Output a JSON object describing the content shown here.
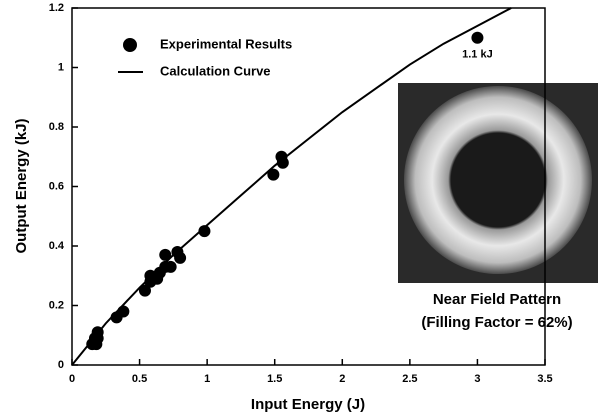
{
  "chart_data": {
    "type": "scatter",
    "xlabel": "Input Energy (J)",
    "ylabel": "Output Energy (kJ)",
    "xlim": [
      0,
      3.5
    ],
    "ylim": [
      0,
      1.2
    ],
    "xticks": [
      0,
      0.5,
      1,
      1.5,
      2,
      2.5,
      3,
      3.5
    ],
    "yticks": [
      0,
      0.2,
      0.4,
      0.6,
      0.8,
      1,
      1.2
    ],
    "legend": "upper left",
    "series": [
      {
        "name": "Experimental Results",
        "type": "scatter",
        "color": "#000000",
        "x": [
          0.15,
          0.18,
          0.17,
          0.19,
          0.19,
          0.33,
          0.38,
          0.54,
          0.58,
          0.58,
          0.63,
          0.65,
          0.69,
          0.69,
          0.73,
          0.78,
          0.8,
          0.98,
          1.49,
          1.56,
          1.55,
          3.0
        ],
        "values": [
          0.07,
          0.07,
          0.09,
          0.09,
          0.11,
          0.16,
          0.18,
          0.25,
          0.28,
          0.3,
          0.29,
          0.31,
          0.33,
          0.37,
          0.33,
          0.38,
          0.36,
          0.45,
          0.64,
          0.68,
          0.7,
          1.1
        ]
      },
      {
        "name": "Calculation Curve",
        "type": "line",
        "color": "#000000",
        "x": [
          0,
          0.25,
          0.5,
          0.75,
          1,
          1.25,
          1.5,
          1.75,
          2,
          2.25,
          2.5,
          2.75,
          3,
          3.25
        ],
        "values": [
          0,
          0.14,
          0.26,
          0.37,
          0.47,
          0.57,
          0.67,
          0.76,
          0.85,
          0.93,
          1.01,
          1.08,
          1.14,
          1.2
        ]
      }
    ],
    "annotations": [
      {
        "text": "1.1 kJ"
      },
      {
        "text": "Near Field Pattern"
      },
      {
        "text": "(Filling Factor = 62%)"
      }
    ]
  }
}
